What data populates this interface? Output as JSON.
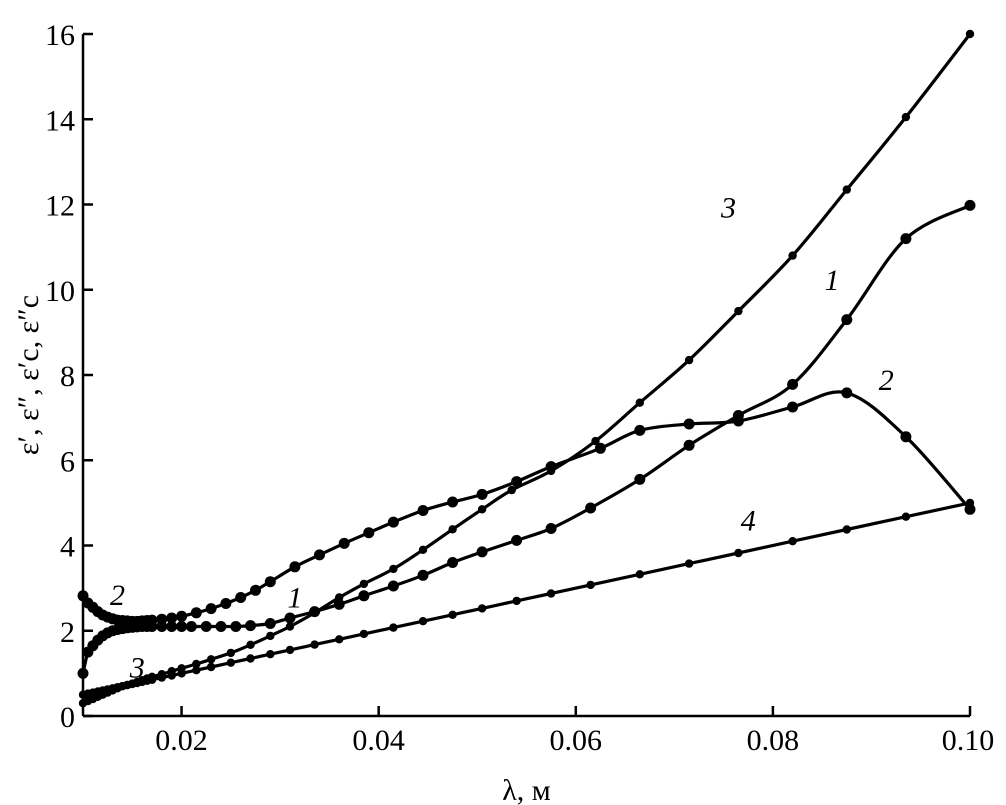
{
  "chart_data": {
    "type": "line",
    "xlabel": "λ, м",
    "ylabel": "ε′, ε″, ε′c, ε″c",
    "xlim": [
      0.01,
      0.1
    ],
    "ylim": [
      0,
      16
    ],
    "xticks": [
      0.02,
      0.04,
      0.06,
      0.08,
      0.1
    ],
    "xtick_labels": [
      "0.02",
      "0.04",
      "0.06",
      "0.08",
      "0.10"
    ],
    "yticks": [
      0,
      2,
      4,
      6,
      8,
      10,
      12,
      14,
      16
    ],
    "ytick_labels": [
      "0",
      "2",
      "4",
      "6",
      "8",
      "10",
      "12",
      "14",
      "16"
    ],
    "grid": false,
    "series": [
      {
        "name": "1",
        "marker_size": "large",
        "x": [
          0.01,
          0.0105,
          0.011,
          0.0115,
          0.012,
          0.0125,
          0.013,
          0.0135,
          0.014,
          0.0145,
          0.015,
          0.0155,
          0.016,
          0.0165,
          0.017,
          0.018,
          0.019,
          0.02,
          0.021,
          0.0225,
          0.024,
          0.0255,
          0.027,
          0.029,
          0.031,
          0.0335,
          0.036,
          0.0385,
          0.0415,
          0.0445,
          0.0475,
          0.0505,
          0.054,
          0.0575,
          0.0615,
          0.0665,
          0.0715,
          0.0765,
          0.082,
          0.0875,
          0.0935,
          0.1
        ],
        "y": [
          1.0,
          1.5,
          1.65,
          1.78,
          1.88,
          1.95,
          2.0,
          2.03,
          2.05,
          2.07,
          2.08,
          2.09,
          2.1,
          2.1,
          2.1,
          2.1,
          2.1,
          2.1,
          2.1,
          2.1,
          2.1,
          2.1,
          2.12,
          2.17,
          2.3,
          2.45,
          2.62,
          2.82,
          3.05,
          3.3,
          3.6,
          3.85,
          4.12,
          4.4,
          4.88,
          5.55,
          6.35,
          7.05,
          7.78,
          9.3,
          11.2,
          11.98
        ]
      },
      {
        "name": "2",
        "marker_size": "large",
        "x": [
          0.01,
          0.0105,
          0.011,
          0.0115,
          0.012,
          0.0125,
          0.013,
          0.0135,
          0.014,
          0.0145,
          0.015,
          0.0155,
          0.016,
          0.0165,
          0.017,
          0.018,
          0.019,
          0.02,
          0.0215,
          0.023,
          0.0245,
          0.026,
          0.0275,
          0.029,
          0.0315,
          0.034,
          0.0365,
          0.039,
          0.0415,
          0.0445,
          0.0475,
          0.0505,
          0.054,
          0.0575,
          0.0625,
          0.0665,
          0.0715,
          0.0765,
          0.082,
          0.0875,
          0.0935,
          0.1
        ],
        "y": [
          2.82,
          2.65,
          2.55,
          2.45,
          2.37,
          2.32,
          2.28,
          2.25,
          2.24,
          2.23,
          2.22,
          2.22,
          2.23,
          2.24,
          2.25,
          2.27,
          2.3,
          2.34,
          2.42,
          2.52,
          2.64,
          2.78,
          2.95,
          3.15,
          3.5,
          3.78,
          4.05,
          4.3,
          4.55,
          4.82,
          5.02,
          5.2,
          5.5,
          5.85,
          6.28,
          6.7,
          6.85,
          6.92,
          7.25,
          7.58,
          6.55,
          4.85
        ]
      },
      {
        "name": "3",
        "marker_size": "small",
        "x": [
          0.01,
          0.0105,
          0.011,
          0.0115,
          0.012,
          0.0125,
          0.013,
          0.0135,
          0.014,
          0.0145,
          0.015,
          0.0155,
          0.016,
          0.0165,
          0.017,
          0.018,
          0.019,
          0.02,
          0.0215,
          0.023,
          0.025,
          0.027,
          0.029,
          0.031,
          0.0335,
          0.036,
          0.0385,
          0.0415,
          0.0445,
          0.0475,
          0.0505,
          0.0535,
          0.0575,
          0.062,
          0.0665,
          0.0715,
          0.0765,
          0.082,
          0.0875,
          0.0935,
          0.1
        ],
        "y": [
          0.3,
          0.35,
          0.4,
          0.45,
          0.5,
          0.55,
          0.6,
          0.65,
          0.7,
          0.73,
          0.76,
          0.8,
          0.84,
          0.88,
          0.92,
          0.98,
          1.05,
          1.12,
          1.22,
          1.33,
          1.48,
          1.67,
          1.88,
          2.1,
          2.42,
          2.78,
          3.1,
          3.45,
          3.9,
          4.38,
          4.85,
          5.3,
          5.75,
          6.45,
          7.35,
          8.35,
          9.5,
          10.8,
          12.35,
          14.05,
          16.0
        ]
      },
      {
        "name": "4",
        "marker_size": "small",
        "x": [
          0.01,
          0.0105,
          0.011,
          0.0115,
          0.012,
          0.0125,
          0.013,
          0.0135,
          0.014,
          0.0145,
          0.015,
          0.0155,
          0.016,
          0.0165,
          0.017,
          0.018,
          0.019,
          0.02,
          0.0215,
          0.023,
          0.025,
          0.027,
          0.029,
          0.031,
          0.0335,
          0.036,
          0.0385,
          0.0415,
          0.0445,
          0.0475,
          0.0505,
          0.054,
          0.0575,
          0.0615,
          0.0665,
          0.0715,
          0.0765,
          0.082,
          0.0875,
          0.0935,
          0.1
        ],
        "y": [
          0.5,
          0.525,
          0.55,
          0.575,
          0.6,
          0.625,
          0.65,
          0.675,
          0.7,
          0.725,
          0.75,
          0.775,
          0.8,
          0.825,
          0.85,
          0.9,
          0.95,
          1.0,
          1.075,
          1.15,
          1.25,
          1.35,
          1.45,
          1.55,
          1.675,
          1.8,
          1.925,
          2.075,
          2.225,
          2.375,
          2.525,
          2.7,
          2.875,
          3.075,
          3.325,
          3.575,
          3.825,
          4.1,
          4.375,
          4.675,
          5.0
        ]
      }
    ],
    "curve_labels": [
      {
        "text": "1",
        "x": 0.086,
        "y": 10.0
      },
      {
        "text": "1",
        "x": 0.0315,
        "y": 2.55
      },
      {
        "text": "2",
        "x": 0.0915,
        "y": 7.65
      },
      {
        "text": "2",
        "x": 0.0135,
        "y": 2.6
      },
      {
        "text": "3",
        "x": 0.0755,
        "y": 11.7
      },
      {
        "text": "3",
        "x": 0.0155,
        "y": 0.9
      },
      {
        "text": "4",
        "x": 0.0775,
        "y": 4.35
      }
    ]
  }
}
